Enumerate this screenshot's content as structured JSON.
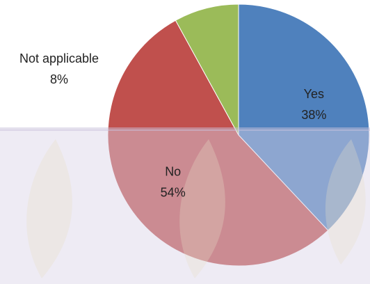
{
  "chart_data": {
    "type": "pie",
    "categories": [
      "Yes",
      "No",
      "Not applicable"
    ],
    "values": [
      38,
      54,
      8
    ],
    "value_labels": [
      "38%",
      "54%",
      "8%"
    ],
    "colors": [
      "#4f81bd",
      "#c0504d",
      "#9bbb59"
    ]
  }
}
